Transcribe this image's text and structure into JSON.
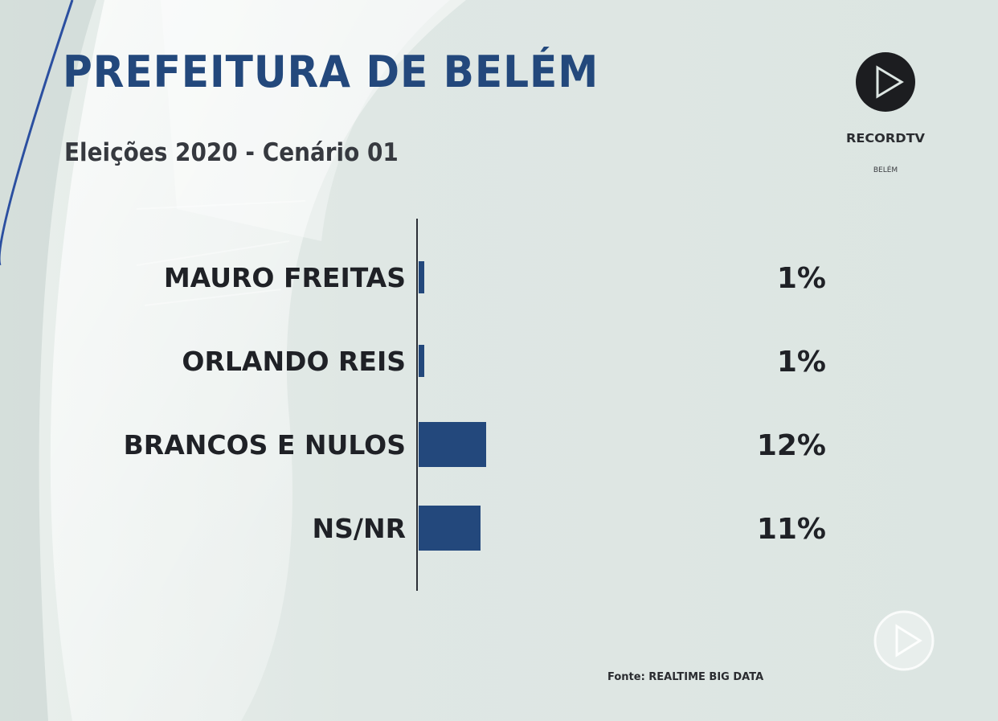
{
  "header": {
    "title": "PREFEITURA DE BELÉM",
    "subtitle": "Eleições 2020 - Cenário 01"
  },
  "branding": {
    "logo_icon": "record-tv-play-icon",
    "logo_text": "RECORDTV",
    "logo_region": "BELÉM",
    "watermark_icon": "record-play-watermark-icon"
  },
  "footer": {
    "source": "Fonte: REALTIME BIG DATA"
  },
  "colors": {
    "bar": "#23487c",
    "title": "#23487c",
    "background": "#dde6e3",
    "axis": "#2b2f36"
  },
  "chart_data": {
    "type": "bar",
    "orientation": "horizontal",
    "title": "PREFEITURA DE BELÉM",
    "subtitle": "Eleições 2020 - Cenário 01",
    "categories": [
      "MAURO FREITAS",
      "ORLANDO REIS",
      "BRANCOS E NULOS",
      "NS/NR"
    ],
    "values": [
      1,
      1,
      12,
      11
    ],
    "value_labels": [
      "1%",
      "1%",
      "12%",
      "11%"
    ],
    "unit": "%",
    "xlim": [
      0,
      100
    ],
    "grid": false,
    "legend": "none"
  }
}
